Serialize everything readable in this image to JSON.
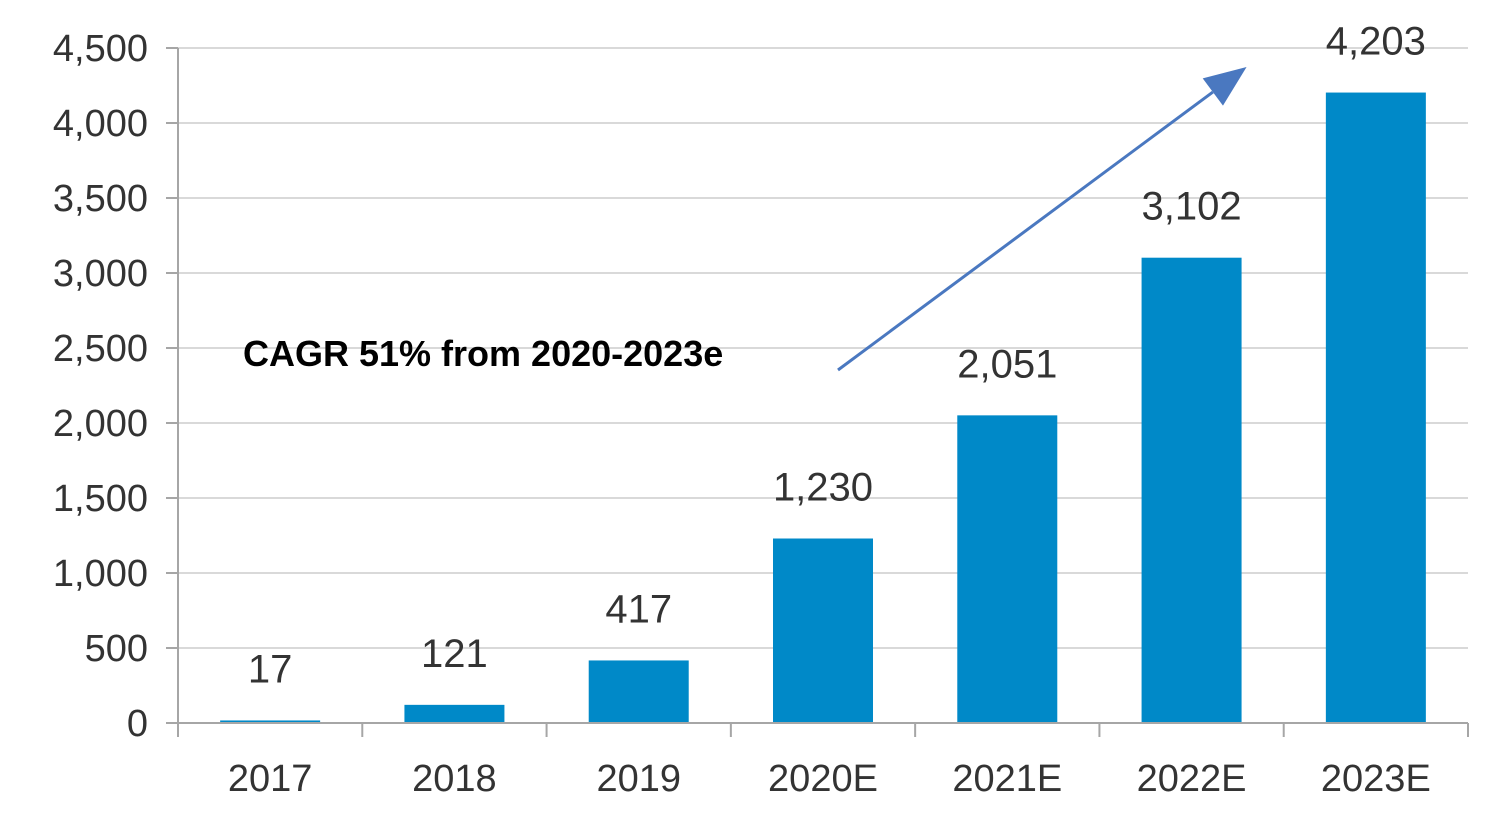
{
  "chart_data": {
    "type": "bar",
    "categories": [
      "2017",
      "2018",
      "2019",
      "2020E",
      "2021E",
      "2022E",
      "2023E"
    ],
    "values": [
      17,
      121,
      417,
      1230,
      2051,
      3102,
      4203
    ],
    "data_labels": [
      "17",
      "121",
      "417",
      "1,230",
      "2,051",
      "3,102",
      "4,203"
    ],
    "title": "",
    "xlabel": "",
    "ylabel": "",
    "ylim": [
      0,
      4500
    ],
    "yticks": [
      0,
      500,
      1000,
      1500,
      2000,
      2500,
      3000,
      3500,
      4000,
      4500
    ],
    "ytick_labels": [
      "0",
      "500",
      "1,000",
      "1,500",
      "2,000",
      "2,500",
      "3,000",
      "3,500",
      "4,000",
      "4,500"
    ],
    "grid": true,
    "legend": "none",
    "bar_color": "#0089C8",
    "grid_color": "#D9D9D9",
    "axis_color": "#A6A6A6",
    "arrow_color": "#4A78C0",
    "annotation": {
      "text": "CAGR 51% from 2020-2023e",
      "arrow_from_category": "2020E",
      "arrow_to_category": "2022E"
    }
  }
}
